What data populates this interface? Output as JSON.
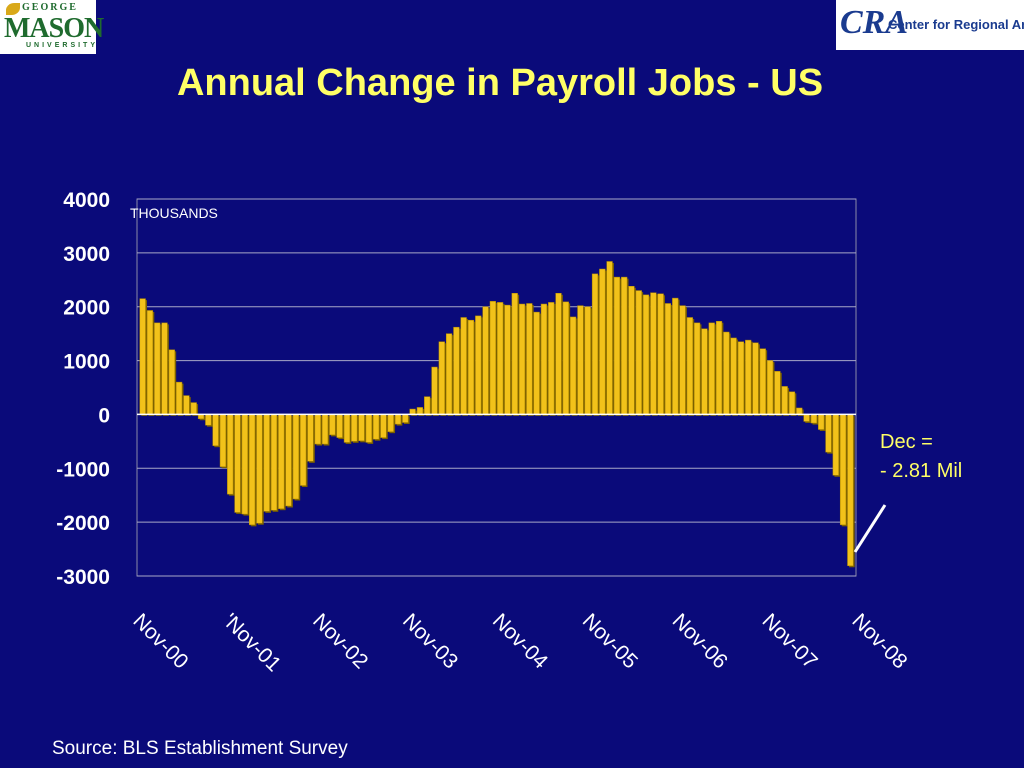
{
  "logos": {
    "left": {
      "top": "GEORGE",
      "main": "MASON",
      "bottom": "UNIVERSITY"
    },
    "right": {
      "mark": "CRA",
      "text": "Center for Regional Analysis"
    }
  },
  "title": "Annual Change in Payroll Jobs - US",
  "source": "Source: BLS Establishment Survey",
  "chart_data": {
    "type": "bar",
    "unit_label": "THOUSANDS",
    "ylim": [
      -3000,
      4000
    ],
    "yticks": [
      "4000",
      "3000",
      "2000",
      "1000",
      "0",
      "-1000",
      "-2000",
      "-3000"
    ],
    "xticks": [
      "Nov-00",
      "'Nov-01",
      "Nov-02",
      "Nov-03",
      "Nov-04",
      "Nov-05",
      "Nov-06",
      "Nov-07",
      "Nov-08"
    ],
    "grid": true,
    "bar_color": "#f2c21a",
    "annotation": {
      "line1": "Dec =",
      "line2": "- 2.81 Mil"
    },
    "values": [
      2150,
      1930,
      1700,
      1700,
      1200,
      600,
      350,
      220,
      -80,
      -200,
      -580,
      -970,
      -1480,
      -1820,
      -1850,
      -2050,
      -2020,
      -1800,
      -1780,
      -1750,
      -1700,
      -1570,
      -1320,
      -870,
      -550,
      -550,
      -380,
      -430,
      -520,
      -500,
      -490,
      -520,
      -460,
      -430,
      -320,
      -180,
      -150,
      100,
      130,
      330,
      880,
      1350,
      1500,
      1620,
      1800,
      1750,
      1830,
      2000,
      2100,
      2080,
      2030,
      2250,
      2050,
      2060,
      1900,
      2050,
      2080,
      2250,
      2090,
      1810,
      2020,
      2000,
      2610,
      2700,
      2840,
      2550,
      2550,
      2380,
      2300,
      2220,
      2260,
      2240,
      2060,
      2160,
      2020,
      1800,
      1700,
      1590,
      1700,
      1730,
      1530,
      1420,
      1350,
      1380,
      1330,
      1220,
      1000,
      800,
      520,
      420,
      120,
      -130,
      -160,
      -280,
      -700,
      -1130,
      -2050,
      -2810
    ]
  }
}
